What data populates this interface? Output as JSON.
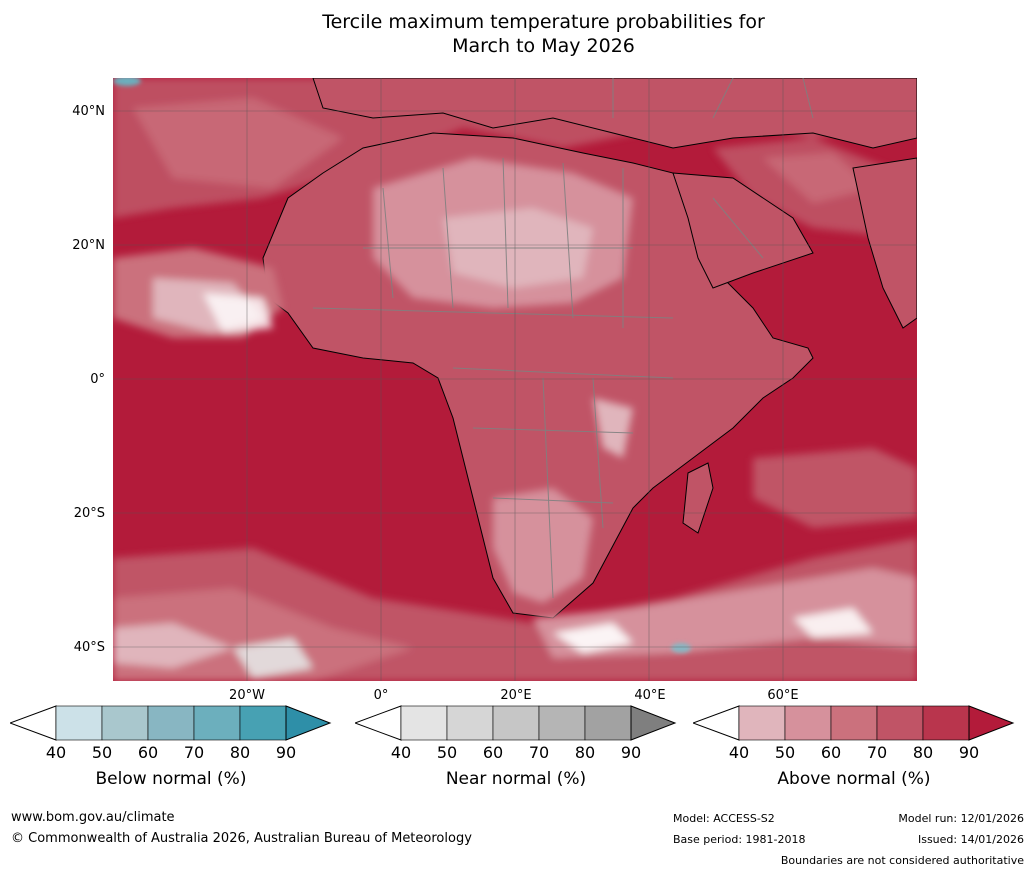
{
  "title": {
    "line1": "Tercile maximum temperature probabilities for",
    "line2": "March to May 2026"
  },
  "map": {
    "lat_labels": [
      "40°N",
      "20°N",
      "0°",
      "20°S",
      "40°S"
    ],
    "lon_labels": [
      "20°W",
      "0°",
      "20°E",
      "40°E",
      "60°E"
    ],
    "ocean_color": "#b31b3a",
    "land_outline_color": "#000000",
    "border_color": "#808080"
  },
  "colorbars": [
    {
      "caption": "Below normal (%)",
      "ticks": [
        "40",
        "50",
        "60",
        "70",
        "80",
        "90"
      ],
      "colors": [
        "#ffffff",
        "#cce1e8",
        "#a9c7cd",
        "#88b6c2",
        "#6cafbd",
        "#47a1b3",
        "#2e8fa8"
      ]
    },
    {
      "caption": "Near normal (%)",
      "ticks": [
        "40",
        "50",
        "60",
        "70",
        "80",
        "90"
      ],
      "colors": [
        "#ffffff",
        "#e4e4e4",
        "#d6d6d6",
        "#c6c6c6",
        "#b5b5b5",
        "#a2a2a2",
        "#7f7f7f"
      ]
    },
    {
      "caption": "Above normal (%)",
      "ticks": [
        "40",
        "50",
        "60",
        "70",
        "80",
        "90"
      ],
      "colors": [
        "#ffffff",
        "#e0b5bc",
        "#d6919c",
        "#cb717d",
        "#c05466",
        "#b9354d",
        "#b31b3a"
      ]
    }
  ],
  "footer": {
    "website": "www.bom.gov.au/climate",
    "copyright": "© Commonwealth of Australia 2026, Australian Bureau of Meteorology",
    "model": "Model: ACCESS-S2",
    "base_period": "Base period: 1981-2018",
    "model_run": "Model run: 12/01/2026",
    "issued": "Issued: 14/01/2026",
    "disclaimer": "Boundaries are not considered authoritative"
  }
}
